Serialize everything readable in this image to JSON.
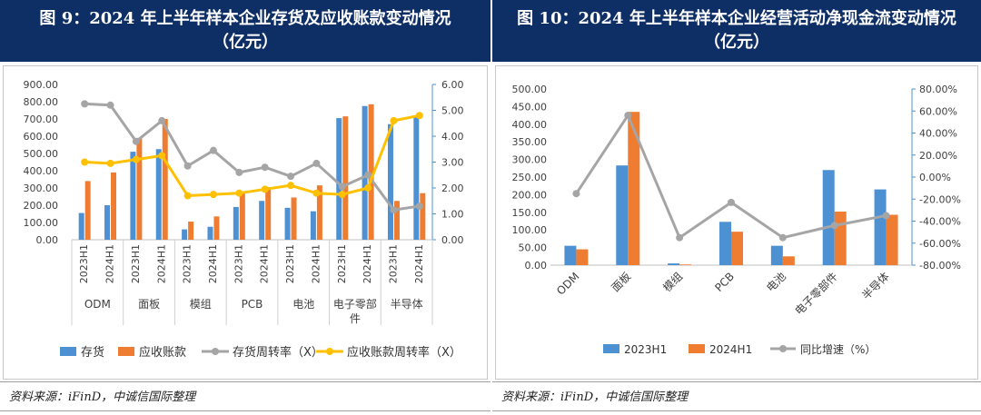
{
  "colors": {
    "title_bg": "#0e2e66",
    "blue": "#4e91d3",
    "orange": "#ee7d31",
    "gray": "#a5a5a5",
    "yellow": "#ffc000",
    "right_axis": "#4e91d3"
  },
  "left": {
    "title_line1": "图 9：2024 年上半年样本企业存货及应收账款变动情况",
    "title_line2": "（亿元）",
    "source": "资料来源：iFinD，中诚信国际整理",
    "legend": {
      "inventory": "存货",
      "receivable": "应收账款",
      "inv_turnover": "存货周转率（X）",
      "rec_turnover": "应收账款周转率（X）"
    }
  },
  "right": {
    "title_line1": "图 10：2024 年上半年样本企业经营活动净现金流变动情况",
    "title_line2": "（亿元）",
    "source": "资料来源：iFinD，中诚信国际整理",
    "legend": {
      "h1_2023": "2023H1",
      "h1_2024": "2024H1",
      "yoy": "同比增速（%）"
    }
  },
  "chart_data": [
    {
      "type": "bar",
      "groups": [
        "ODM",
        "面板",
        "模组",
        "PCB",
        "电池",
        "电子零部件",
        "半导体"
      ],
      "periods": [
        "2023H1",
        "2024H1"
      ],
      "ylim": [
        0,
        900
      ],
      "y_ticks": [
        "0.00",
        "100.00",
        "200.00",
        "300.00",
        "400.00",
        "500.00",
        "600.00",
        "700.00",
        "800.00",
        "900.00"
      ],
      "y2lim": [
        0,
        6
      ],
      "y2_ticks": [
        "0.00",
        "1.00",
        "2.00",
        "3.00",
        "4.00",
        "5.00",
        "6.00"
      ],
      "series": [
        {
          "name": "存货",
          "kind": "bar",
          "axis": "left",
          "values": [
            155,
            200,
            510,
            525,
            60,
            75,
            190,
            225,
            185,
            165,
            705,
            775,
            670,
            710
          ]
        },
        {
          "name": "应收账款",
          "kind": "bar",
          "axis": "left",
          "values": [
            340,
            390,
            590,
            700,
            105,
            135,
            280,
            305,
            245,
            315,
            715,
            785,
            225,
            270
          ]
        },
        {
          "name": "存货周转率（X）",
          "kind": "line",
          "axis": "right",
          "values": [
            5.25,
            5.2,
            3.8,
            4.6,
            2.85,
            3.45,
            2.6,
            2.8,
            2.45,
            2.95,
            2.05,
            2.5,
            1.15,
            1.3
          ]
        },
        {
          "name": "应收账款周转率（X）",
          "kind": "line",
          "axis": "right",
          "values": [
            3.0,
            2.95,
            3.1,
            3.25,
            1.7,
            1.75,
            1.8,
            1.95,
            2.1,
            1.8,
            1.75,
            2.0,
            4.6,
            4.8
          ]
        }
      ]
    },
    {
      "type": "bar",
      "categories": [
        "ODM",
        "面板",
        "模组",
        "PCB",
        "电池",
        "电子零部件",
        "半导体"
      ],
      "ylim": [
        0,
        500
      ],
      "y_ticks": [
        "0.00",
        "50.00",
        "100.00",
        "150.00",
        "200.00",
        "250.00",
        "300.00",
        "350.00",
        "400.00",
        "450.00",
        "500.00"
      ],
      "y2lim": [
        -80,
        80
      ],
      "y2_ticks": [
        "-80.00%",
        "-60.00%",
        "-40.00%",
        "-20.00%",
        "0.00%",
        "20.00%",
        "40.00%",
        "60.00%",
        "80.00%"
      ],
      "series": [
        {
          "name": "2023H1",
          "kind": "bar",
          "axis": "left",
          "values": [
            55,
            283,
            5,
            123,
            55,
            270,
            215
          ]
        },
        {
          "name": "2024H1",
          "kind": "bar",
          "axis": "left",
          "values": [
            45,
            435,
            2,
            95,
            25,
            152,
            143
          ]
        },
        {
          "name": "同比增速（%）",
          "kind": "line",
          "axis": "right",
          "values": [
            -15,
            56,
            -55,
            -23,
            -55,
            -44,
            -35
          ]
        }
      ]
    }
  ]
}
